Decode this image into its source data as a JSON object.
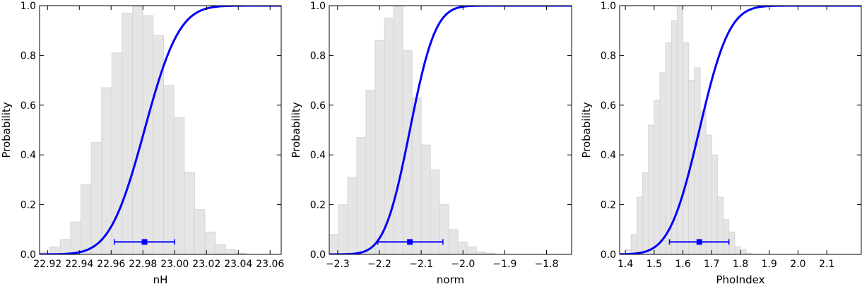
{
  "chart_data": [
    {
      "type": "histogram_with_cdf",
      "xlabel": "nH",
      "ylabel": "Probability",
      "xlim": [
        22.915,
        23.067
      ],
      "ylim": [
        0,
        1.0
      ],
      "xticks": [
        22.92,
        22.94,
        22.96,
        22.98,
        23.0,
        23.02,
        23.04,
        23.06
      ],
      "xtick_labels": [
        "22.92",
        "22.94",
        "22.96",
        "22.98",
        "23.00",
        "23.02",
        "23.04",
        "23.06"
      ],
      "yticks": [
        0,
        0.2,
        0.4,
        0.6,
        0.8,
        1.0
      ],
      "ytick_labels": [
        "0.0",
        "0.2",
        "0.4",
        "0.6",
        "0.8",
        "1.0"
      ],
      "hist": {
        "edges": [
          22.915,
          22.9215,
          22.928,
          22.9345,
          22.941,
          22.9475,
          22.954,
          22.9605,
          22.967,
          22.9735,
          22.98,
          22.9865,
          22.993,
          22.9995,
          23.006,
          23.0125,
          23.019,
          23.0255,
          23.032,
          23.0385,
          23.045
        ],
        "values": [
          0.01,
          0.03,
          0.06,
          0.13,
          0.28,
          0.45,
          0.67,
          0.81,
          0.97,
          1.0,
          0.96,
          0.88,
          0.68,
          0.55,
          0.33,
          0.18,
          0.09,
          0.04,
          0.02,
          0.005
        ],
        "color": "#e5e5e5",
        "edge_color": "#d6d6d6"
      },
      "cdf": {
        "mean": 22.981,
        "sd": 0.0172,
        "color": "#0000ff"
      },
      "errorbar": {
        "x": 22.981,
        "y": 0.05,
        "xerr_low": 22.962,
        "xerr_high": 23.0,
        "color": "#0000ff"
      }
    },
    {
      "type": "histogram_with_cdf",
      "xlabel": "norm",
      "ylabel": "Probability",
      "xlim": [
        -2.32,
        -1.74
      ],
      "ylim": [
        0,
        1.0
      ],
      "xticks": [
        -2.3,
        -2.2,
        -2.1,
        -2.0,
        -1.9,
        -1.8
      ],
      "xtick_labels": [
        "−2.3",
        "−2.2",
        "−2.1",
        "−2.0",
        "−1.9",
        "−1.8"
      ],
      "yticks": [
        0,
        0.2,
        0.4,
        0.6,
        0.8,
        1.0
      ],
      "ytick_labels": [
        "0.0",
        "0.2",
        "0.4",
        "0.6",
        "0.8",
        "1.0"
      ],
      "hist": {
        "edges": [
          -2.32,
          -2.298,
          -2.276,
          -2.254,
          -2.232,
          -2.21,
          -2.188,
          -2.166,
          -2.144,
          -2.122,
          -2.1,
          -2.078,
          -2.056,
          -2.034,
          -2.012,
          -1.99,
          -1.968,
          -1.946,
          -1.924,
          -1.902,
          -1.88,
          -1.858
        ],
        "values": [
          0.08,
          0.2,
          0.31,
          0.47,
          0.66,
          0.86,
          0.95,
          1.0,
          0.82,
          0.63,
          0.44,
          0.34,
          0.2,
          0.1,
          0.05,
          0.03,
          0.01,
          0.005,
          0.0,
          0.0,
          0.0
        ],
        "color": "#e5e5e5",
        "edge_color": "#d6d6d6"
      },
      "cdf": {
        "mean": -2.127,
        "sd": 0.048,
        "color": "#0000ff"
      },
      "errorbar": {
        "x": -2.127,
        "y": 0.05,
        "xerr_low": -2.204,
        "xerr_high": -2.048,
        "color": "#0000ff"
      }
    },
    {
      "type": "histogram_with_cdf",
      "xlabel": "PhoIndex",
      "ylabel": "Probability",
      "xlim": [
        1.38,
        2.22
      ],
      "ylim": [
        0,
        1.0
      ],
      "xticks": [
        1.4,
        1.5,
        1.6,
        1.7,
        1.8,
        1.9,
        2.0,
        2.1
      ],
      "xtick_labels": [
        "1.4",
        "1.5",
        "1.6",
        "1.7",
        "1.8",
        "1.9",
        "2.0",
        "2.1"
      ],
      "yticks": [
        0,
        0.2,
        0.4,
        0.6,
        0.8,
        1.0
      ],
      "ytick_labels": [
        "0.0",
        "0.2",
        "0.4",
        "0.6",
        "0.8",
        "1.0"
      ],
      "hist": {
        "edges": [
          1.4,
          1.42,
          1.44,
          1.46,
          1.48,
          1.5,
          1.52,
          1.54,
          1.56,
          1.58,
          1.6,
          1.62,
          1.64,
          1.66,
          1.68,
          1.7,
          1.72,
          1.74,
          1.76,
          1.78,
          1.8,
          1.82,
          1.84,
          1.86,
          1.88,
          1.9,
          1.92,
          1.94,
          1.96,
          1.98
        ],
        "values": [
          0.02,
          0.08,
          0.23,
          0.33,
          0.52,
          0.62,
          0.73,
          0.85,
          0.94,
          1.0,
          0.85,
          0.7,
          0.75,
          0.58,
          0.48,
          0.4,
          0.23,
          0.14,
          0.09,
          0.03,
          0.02,
          0.005,
          0.0,
          0.0,
          0.0,
          0.0,
          0.0,
          0.0,
          0.0
        ],
        "color": "#e5e5e5",
        "edge_color": "#d6d6d6"
      },
      "cdf": {
        "mean": 1.657,
        "sd": 0.082,
        "color": "#0000ff"
      },
      "errorbar": {
        "x": 1.657,
        "y": 0.05,
        "xerr_low": 1.553,
        "xerr_high": 1.76,
        "color": "#0000ff"
      }
    }
  ]
}
